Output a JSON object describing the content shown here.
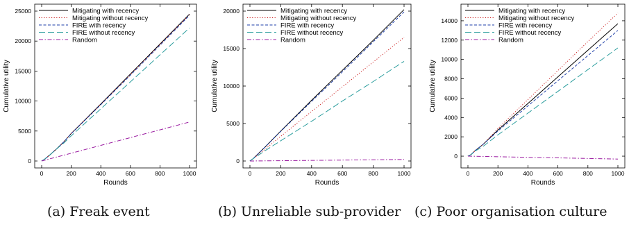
{
  "captions": [
    "(a) Freak event",
    "(b) Unreliable sub-provider",
    "(c) Poor organisation culture"
  ],
  "styles": {
    "mitigating_with_recency": {
      "color": "#000000",
      "dash": ""
    },
    "mitigating_without_recency": {
      "color": "#cc2222",
      "dash": "1.2,2.4"
    },
    "fire_with_recency": {
      "color": "#1f3fa8",
      "dash": "4,2.5"
    },
    "fire_without_recency": {
      "color": "#2a9d9d",
      "dash": "9,4"
    },
    "random": {
      "color": "#9a1aa0",
      "dash": "6,2.5,1.5,2.5"
    }
  },
  "chart_data": [
    {
      "type": "line",
      "xlabel": "Rounds",
      "ylabel": "Cumulative utility",
      "xlim": [
        0,
        1000
      ],
      "ylim": [
        0,
        25000
      ],
      "xticks": [
        0,
        200,
        400,
        600,
        800,
        1000
      ],
      "yticks": [
        0,
        5000,
        10000,
        15000,
        20000,
        25000
      ],
      "legend_position": "top-left",
      "series": [
        {
          "name": "Mitigating with recency",
          "style": "mitigating_with_recency",
          "x": [
            0,
            20,
            50,
            100,
            150,
            200,
            400,
            600,
            800,
            1000
          ],
          "y": [
            0,
            300,
            900,
            2000,
            3200,
            4600,
            9500,
            14500,
            19500,
            24500
          ]
        },
        {
          "name": "Mitigating without recency",
          "style": "mitigating_without_recency",
          "x": [
            0,
            20,
            50,
            100,
            150,
            200,
            400,
            600,
            800,
            1000
          ],
          "y": [
            0,
            300,
            900,
            2000,
            3200,
            4600,
            9450,
            14400,
            19400,
            24400
          ]
        },
        {
          "name": "FIRE with recency",
          "style": "fire_with_recency",
          "x": [
            0,
            20,
            50,
            100,
            150,
            200,
            400,
            600,
            800,
            1000
          ],
          "y": [
            0,
            300,
            900,
            2000,
            3200,
            4550,
            9400,
            14300,
            19300,
            24300
          ]
        },
        {
          "name": "FIRE without recency",
          "style": "fire_without_recency",
          "x": [
            0,
            20,
            50,
            100,
            150,
            200,
            400,
            600,
            800,
            1000
          ],
          "y": [
            0,
            300,
            900,
            2000,
            3000,
            4200,
            8700,
            13200,
            17700,
            22200
          ]
        },
        {
          "name": "Random",
          "style": "random",
          "x": [
            0,
            200,
            400,
            600,
            800,
            1000
          ],
          "y": [
            0,
            1300,
            2600,
            3900,
            5200,
            6500
          ]
        }
      ]
    },
    {
      "type": "line",
      "xlabel": "Rounds",
      "ylabel": "Cumulative utility",
      "xlim": [
        0,
        1000
      ],
      "ylim": [
        0,
        20000
      ],
      "xticks": [
        0,
        200,
        400,
        600,
        800,
        1000
      ],
      "yticks": [
        0,
        5000,
        10000,
        15000,
        20000
      ],
      "legend_position": "top-left",
      "series": [
        {
          "name": "Mitigating with recency",
          "style": "mitigating_with_recency",
          "x": [
            0,
            20,
            50,
            100,
            200,
            400,
            600,
            800,
            1000
          ],
          "y": [
            0,
            300,
            900,
            1900,
            4000,
            8100,
            12100,
            16100,
            20200
          ]
        },
        {
          "name": "Mitigating without recency",
          "style": "mitigating_without_recency",
          "x": [
            0,
            20,
            50,
            100,
            200,
            400,
            600,
            800,
            1000
          ],
          "y": [
            0,
            300,
            800,
            1600,
            3300,
            6600,
            9900,
            13200,
            16500
          ]
        },
        {
          "name": "FIRE with recency",
          "style": "fire_with_recency",
          "x": [
            0,
            20,
            50,
            100,
            200,
            400,
            600,
            800,
            1000
          ],
          "y": [
            0,
            300,
            900,
            1900,
            3950,
            7950,
            11900,
            15900,
            19900
          ]
        },
        {
          "name": "FIRE without recency",
          "style": "fire_without_recency",
          "x": [
            0,
            20,
            50,
            100,
            200,
            400,
            600,
            800,
            1000
          ],
          "y": [
            0,
            300,
            700,
            1400,
            2700,
            5300,
            8000,
            10600,
            13300
          ]
        },
        {
          "name": "Random",
          "style": "random",
          "x": [
            0,
            500,
            1000
          ],
          "y": [
            0,
            100,
            200
          ]
        }
      ]
    },
    {
      "type": "line",
      "xlabel": "Rounds",
      "ylabel": "Cumulative utility",
      "xlim": [
        0,
        1000
      ],
      "ylim": [
        -500,
        15000
      ],
      "xticks": [
        0,
        200,
        400,
        600,
        800,
        1000
      ],
      "yticks": [
        0,
        2000,
        4000,
        6000,
        8000,
        10000,
        12000,
        14000
      ],
      "legend_position": "top-left",
      "series": [
        {
          "name": "Mitigating with recency",
          "style": "mitigating_with_recency",
          "x": [
            0,
            20,
            50,
            100,
            200,
            400,
            600,
            800,
            1000
          ],
          "y": [
            0,
            150,
            600,
            1200,
            2700,
            5450,
            8200,
            10950,
            13700
          ]
        },
        {
          "name": "Mitigating without recency",
          "style": "mitigating_without_recency",
          "x": [
            0,
            20,
            50,
            100,
            200,
            400,
            600,
            800,
            1000
          ],
          "y": [
            0,
            150,
            600,
            1200,
            2850,
            5850,
            8850,
            11850,
            14800
          ]
        },
        {
          "name": "FIRE with recency",
          "style": "fire_with_recency",
          "x": [
            0,
            20,
            50,
            100,
            200,
            400,
            600,
            800,
            1000
          ],
          "y": [
            0,
            150,
            600,
            1200,
            2600,
            5200,
            7800,
            10400,
            13000
          ]
        },
        {
          "name": "FIRE without recency",
          "style": "fire_without_recency",
          "x": [
            0,
            20,
            50,
            100,
            200,
            400,
            600,
            800,
            1000
          ],
          "y": [
            0,
            150,
            550,
            1000,
            2200,
            4450,
            6700,
            8950,
            11200
          ]
        },
        {
          "name": "Random",
          "style": "random",
          "x": [
            0,
            500,
            1000
          ],
          "y": [
            0,
            -150,
            -300
          ]
        }
      ]
    }
  ]
}
